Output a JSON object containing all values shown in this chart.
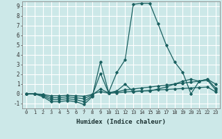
{
  "xlabel": "Humidex (Indice chaleur)",
  "xlim": [
    -0.5,
    23.5
  ],
  "ylim": [
    -1.5,
    9.5
  ],
  "xticks": [
    0,
    1,
    2,
    3,
    4,
    5,
    6,
    7,
    8,
    9,
    10,
    11,
    12,
    13,
    14,
    15,
    16,
    17,
    18,
    19,
    20,
    21,
    22,
    23
  ],
  "yticks": [
    -1,
    0,
    1,
    2,
    3,
    4,
    5,
    6,
    7,
    8,
    9
  ],
  "background_color": "#cce8e8",
  "grid_color": "#ffffff",
  "line_color": "#1a6060",
  "series": [
    {
      "x": [
        0,
        1,
        2,
        3,
        4,
        5,
        6,
        7,
        8,
        9,
        10,
        11,
        12,
        13,
        14,
        15,
        16,
        17,
        18,
        19,
        20,
        21,
        22,
        23
      ],
      "y": [
        0.0,
        0.0,
        -0.3,
        -0.8,
        -0.8,
        -0.7,
        -0.8,
        -1.1,
        -0.3,
        3.3,
        0.15,
        2.2,
        3.5,
        9.2,
        9.3,
        9.3,
        7.2,
        5.0,
        3.3,
        2.2,
        0.0,
        1.3,
        1.5,
        1.0
      ]
    },
    {
      "x": [
        0,
        1,
        2,
        3,
        4,
        5,
        6,
        7,
        8,
        9,
        10,
        11,
        12,
        13,
        14,
        15,
        16,
        17,
        18,
        19,
        20,
        21,
        22,
        23
      ],
      "y": [
        0.0,
        0.0,
        -0.2,
        -0.6,
        -0.6,
        -0.5,
        -0.6,
        -0.8,
        -0.2,
        2.1,
        0.1,
        0.3,
        1.0,
        0.2,
        0.3,
        0.3,
        0.5,
        0.7,
        1.0,
        1.3,
        1.5,
        1.3,
        1.5,
        0.6
      ]
    },
    {
      "x": [
        0,
        1,
        2,
        3,
        4,
        5,
        6,
        7,
        8,
        9,
        10,
        11,
        12,
        13,
        14,
        15,
        16,
        17,
        18,
        19,
        20,
        21,
        22,
        23
      ],
      "y": [
        0.0,
        0.0,
        -0.1,
        -0.4,
        -0.4,
        -0.3,
        -0.4,
        -0.5,
        -0.1,
        0.5,
        0.1,
        0.2,
        0.4,
        0.5,
        0.6,
        0.7,
        0.8,
        0.9,
        1.0,
        1.1,
        1.2,
        1.3,
        1.4,
        0.4
      ]
    },
    {
      "x": [
        0,
        1,
        2,
        3,
        4,
        5,
        6,
        7,
        8,
        9,
        10,
        11,
        12,
        13,
        14,
        15,
        16,
        17,
        18,
        19,
        20,
        21,
        22,
        23
      ],
      "y": [
        0.0,
        0.0,
        -0.05,
        -0.2,
        -0.2,
        -0.15,
        -0.2,
        -0.25,
        -0.05,
        0.25,
        0.05,
        0.1,
        0.2,
        0.25,
        0.3,
        0.35,
        0.4,
        0.45,
        0.5,
        0.55,
        0.6,
        0.65,
        0.7,
        0.2
      ]
    }
  ]
}
